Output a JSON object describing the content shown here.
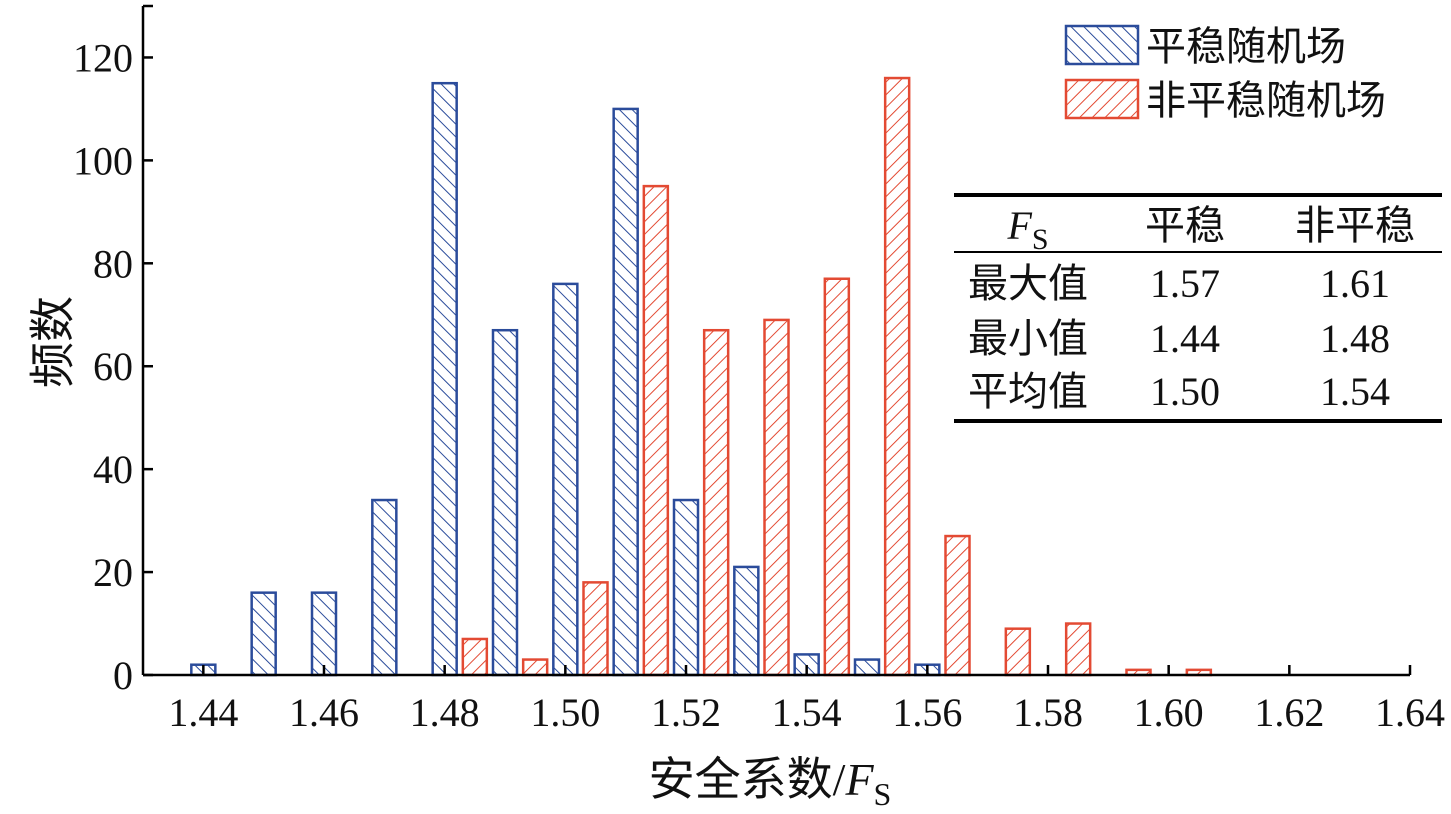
{
  "chart_data": {
    "type": "bar",
    "xlabel": "安全系数/",
    "xlabel_symbol": "F",
    "xlabel_subscript": "S",
    "ylabel": "频数",
    "xlim": [
      1.43,
      1.64
    ],
    "ylim": [
      0,
      130
    ],
    "xticks": [
      "1.44",
      "1.46",
      "1.48",
      "1.50",
      "1.52",
      "1.54",
      "1.56",
      "1.58",
      "1.60",
      "1.62",
      "1.64"
    ],
    "yticks": [
      "0",
      "20",
      "40",
      "60",
      "80",
      "100",
      "120"
    ],
    "grid": false,
    "legend_position": "top-right",
    "series": [
      {
        "name": "平稳随机场",
        "color": "#2B4C9B",
        "hatch": "backslash",
        "bins": [
          1.44,
          1.45,
          1.46,
          1.47,
          1.48,
          1.49,
          1.5,
          1.51,
          1.52,
          1.53,
          1.54,
          1.55,
          1.56
        ],
        "values": [
          2,
          16,
          16,
          34,
          115,
          67,
          76,
          110,
          34,
          21,
          4,
          3,
          2
        ]
      },
      {
        "name": "非平稳随机场",
        "color": "#E34A33",
        "hatch": "slash",
        "bins": [
          1.48,
          1.49,
          1.5,
          1.51,
          1.52,
          1.53,
          1.54,
          1.55,
          1.56,
          1.57,
          1.58,
          1.59,
          1.6
        ],
        "values": [
          7,
          3,
          18,
          95,
          67,
          69,
          77,
          116,
          27,
          9,
          10,
          1,
          1
        ]
      }
    ],
    "table": {
      "header": [
        "F",
        "平稳",
        "非平稳"
      ],
      "header_subscript": "S",
      "rows": [
        [
          "最大值",
          "1.57",
          "1.61"
        ],
        [
          "最小值",
          "1.44",
          "1.48"
        ],
        [
          "平均值",
          "1.50",
          "1.54"
        ]
      ]
    }
  }
}
